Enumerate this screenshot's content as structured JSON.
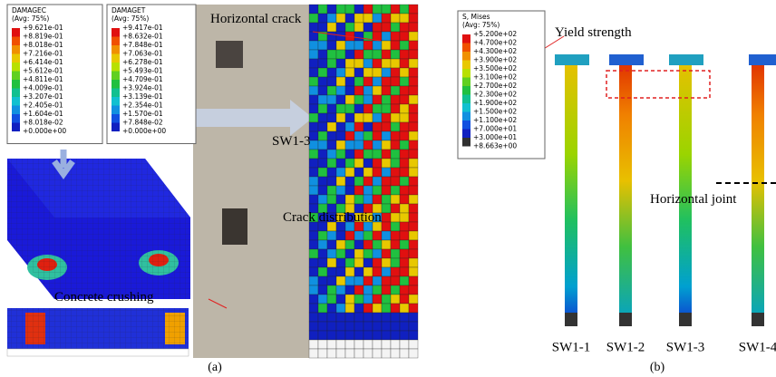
{
  "legends": [
    {
      "title": "DAMAGEC",
      "subtitle": "(Avg: 75%)",
      "labels": [
        "+9.621e-01",
        "+8.819e-01",
        "+8.018e-01",
        "+7.216e-01",
        "+6.414e-01",
        "+5.612e-01",
        "+4.811e-01",
        "+4.009e-01",
        "+3.207e-01",
        "+2.405e-01",
        "+1.604e-01",
        "+8.018e-02",
        "+0.000e+00"
      ]
    },
    {
      "title": "DAMAGET",
      "subtitle": "(Avg: 75%)",
      "labels": [
        "+9.417e-01",
        "+8.632e-01",
        "+7.848e-01",
        "+7.063e-01",
        "+6.278e-01",
        "+5.493e-01",
        "+4.709e-01",
        "+3.924e-01",
        "+3.139e-01",
        "+2.354e-01",
        "+1.570e-01",
        "+7.848e-02",
        "+0.000e+00"
      ]
    },
    {
      "title": "S, Mises",
      "subtitle": "(Avg: 75%)",
      "labels": [
        "+5.200e+02",
        "+4.700e+02",
        "+4.300e+02",
        "+3.900e+02",
        "+3.500e+02",
        "+3.100e+02",
        "+2.700e+02",
        "+2.300e+02",
        "+1.900e+02",
        "+1.500e+02",
        "+1.100e+02",
        "+7.000e+01",
        "+3.000e+01",
        "+8.663e+00"
      ]
    }
  ],
  "annotations": {
    "horizontal_crack": "Horizontal crack",
    "specimen": "SW1-3",
    "crack_distribution": "Crack distribution",
    "concrete_crushing": "Concrete crushing",
    "yield_strength": "Yield strength",
    "horizontal_joint": "Horizontal joint"
  },
  "specimens": [
    "SW1-1",
    "SW1-2",
    "SW1-3",
    "SW1-4"
  ],
  "captions": [
    "(a)",
    "(b)"
  ]
}
